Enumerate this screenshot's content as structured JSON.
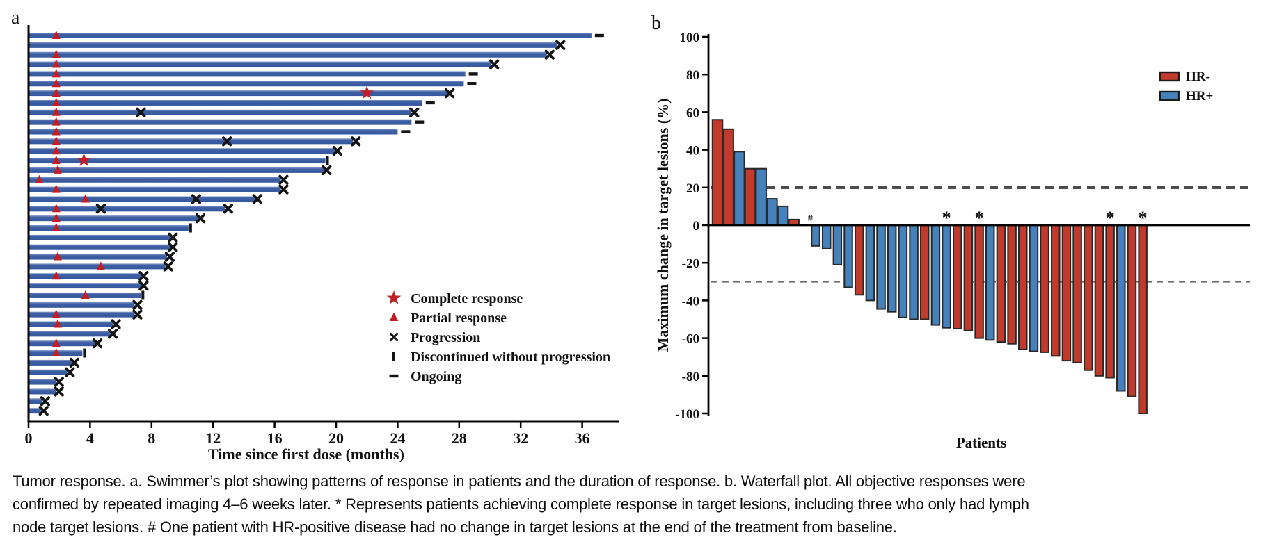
{
  "figure": {
    "panel_a_label": "a",
    "panel_b_label": "b"
  },
  "caption": {
    "line1": "Tumor response. a. Swimmer’s plot showing patterns of response in patients and the duration of response. b. Waterfall plot. All objective responses were",
    "line2": "confirmed by repeated imaging 4–6 weeks later. * Represents patients achieving complete response in target lesions, including three who only had lymph",
    "line3": "node target lesions. # One patient with HR-positive disease had no change in target lesions at the end of the treatment from baseline."
  },
  "chart_data": [
    {
      "type": "bar",
      "subtype": "swimmer",
      "panel": "a",
      "xlabel": "Time since first dose (months)",
      "xlim": [
        0,
        38.5
      ],
      "xticks": [
        0,
        4,
        8,
        12,
        16,
        20,
        24,
        28,
        32,
        36
      ],
      "grid": false,
      "bar_color": "#35589E",
      "marker_red": "#C21E25",
      "marker_black": "#141414",
      "legend_position": "center-right",
      "legend": [
        {
          "label": "Complete response",
          "marker": "star-icon",
          "color": "#C21E25"
        },
        {
          "label": "Partial response",
          "marker": "triangle-icon",
          "color": "#C21E25"
        },
        {
          "label": "Progression",
          "marker": "cross-icon",
          "color": "#141414"
        },
        {
          "label": "Discontinued without progression",
          "marker": "vbar-icon",
          "color": "#141414"
        },
        {
          "label": "Ongoing",
          "marker": "dash-icon",
          "color": "#141414"
        }
      ],
      "patients": [
        {
          "m": 36.6,
          "tri": 1.8,
          "end": "ongoing"
        },
        {
          "m": 34.4,
          "end": "x"
        },
        {
          "m": 33.7,
          "tri": 1.8,
          "end": "x"
        },
        {
          "m": 30.1,
          "tri": 1.8,
          "end": "x"
        },
        {
          "m": 28.4,
          "tri": 1.8,
          "end": "ongoing"
        },
        {
          "m": 28.3,
          "tri": 1.8,
          "end": "ongoing"
        },
        {
          "m": 27.2,
          "tri": 1.8,
          "star": 22.0,
          "end": "x"
        },
        {
          "m": 25.6,
          "tri": 1.8,
          "end": "ongoing"
        },
        {
          "m": 24.9,
          "tri": 1.8,
          "x_mid": [
            7.3
          ],
          "end": "x"
        },
        {
          "m": 24.9,
          "tri": 1.8,
          "end": "ongoing"
        },
        {
          "m": 24.0,
          "tri": 1.8,
          "end": "ongoing"
        },
        {
          "m": 21.1,
          "tri": 1.8,
          "x_mid": [
            12.9
          ],
          "end": "x"
        },
        {
          "m": 19.9,
          "tri": 1.8,
          "end": "x"
        },
        {
          "m": 19.3,
          "tri": 1.8,
          "star": 3.6,
          "end": "disc"
        },
        {
          "m": 19.2,
          "tri": 1.9,
          "end": "x"
        },
        {
          "m": 16.4,
          "tri": 0.7,
          "end": "x"
        },
        {
          "m": 16.4,
          "tri": 1.8,
          "end": "x"
        },
        {
          "m": 14.7,
          "tri": 3.7,
          "x_mid": [
            10.9
          ],
          "end": "x"
        },
        {
          "m": 12.8,
          "tri": 1.8,
          "x_mid": [
            4.7
          ],
          "end": "x"
        },
        {
          "m": 11.0,
          "tri": 1.8,
          "end": "x"
        },
        {
          "m": 10.4,
          "tri": 1.8,
          "end": "disc"
        },
        {
          "m": 9.2,
          "end": "x"
        },
        {
          "m": 9.2,
          "end": "x"
        },
        {
          "m": 9.0,
          "tri": 1.9,
          "end": "x"
        },
        {
          "m": 8.9,
          "tri": 4.7,
          "end": "x"
        },
        {
          "m": 7.3,
          "tri": 1.8,
          "end": "x"
        },
        {
          "m": 7.3,
          "end": "x"
        },
        {
          "m": 7.3,
          "tri": 3.7,
          "end": "disc"
        },
        {
          "m": 6.9,
          "end": "x"
        },
        {
          "m": 6.9,
          "tri": 1.8,
          "end": "x"
        },
        {
          "m": 5.5,
          "tri": 1.9,
          "end": "x"
        },
        {
          "m": 5.3,
          "end": "x"
        },
        {
          "m": 4.3,
          "tri": 1.8,
          "end": "x"
        },
        {
          "m": 3.5,
          "tri": 1.8,
          "end": "disc"
        },
        {
          "m": 2.8,
          "end": "x"
        },
        {
          "m": 2.5,
          "end": "x"
        },
        {
          "m": 1.8,
          "end": "x"
        },
        {
          "m": 1.8,
          "end": "x"
        },
        {
          "m": 0.9,
          "end": "x"
        },
        {
          "m": 0.8,
          "end": "x"
        }
      ]
    },
    {
      "type": "bar",
      "subtype": "waterfall",
      "panel": "b",
      "ylabel": "Maximum change in target lesions (%)",
      "xlabel": "Patients",
      "ylim": [
        -100,
        100
      ],
      "yticks": [
        100,
        80,
        60,
        40,
        20,
        0,
        -20,
        -40,
        -60,
        -80,
        -100
      ],
      "grid": false,
      "reference_lines": [
        20,
        -30
      ],
      "legend_position": "top-right",
      "legend": [
        {
          "label": "HR-",
          "color": "#C13B2D"
        },
        {
          "label": "HR+",
          "color": "#4581BB"
        }
      ],
      "hash_label": "#",
      "star_label": "*",
      "hash_index": 8,
      "star_indices": [
        21,
        24,
        36,
        39
      ],
      "series": [
        {
          "name": "Maximum change in target lesions (%)",
          "values": [
            56,
            51,
            39,
            30,
            30,
            14,
            10,
            3,
            0,
            -11,
            -12.5,
            -21,
            -33,
            -37,
            -40,
            -44.5,
            -46,
            -49,
            -50,
            -50,
            -53,
            -54.5,
            -55,
            -56,
            -60,
            -61,
            -62,
            -63,
            -66,
            -67,
            -67.5,
            -69.5,
            -72,
            -73,
            -77,
            -80,
            -81,
            -88,
            -91,
            -100
          ],
          "groups": [
            "HR-",
            "HR-",
            "HR+",
            "HR-",
            "HR+",
            "HR+",
            "HR+",
            "HR-",
            "HR+",
            "HR+",
            "HR+",
            "HR+",
            "HR+",
            "HR-",
            "HR+",
            "HR+",
            "HR+",
            "HR+",
            "HR+",
            "HR-",
            "HR+",
            "HR+",
            "HR-",
            "HR-",
            "HR-",
            "HR+",
            "HR-",
            "HR-",
            "HR-",
            "HR+",
            "HR-",
            "HR-",
            "HR-",
            "HR-",
            "HR-",
            "HR-",
            "HR-",
            "HR+",
            "HR-",
            "HR-"
          ]
        }
      ]
    }
  ]
}
